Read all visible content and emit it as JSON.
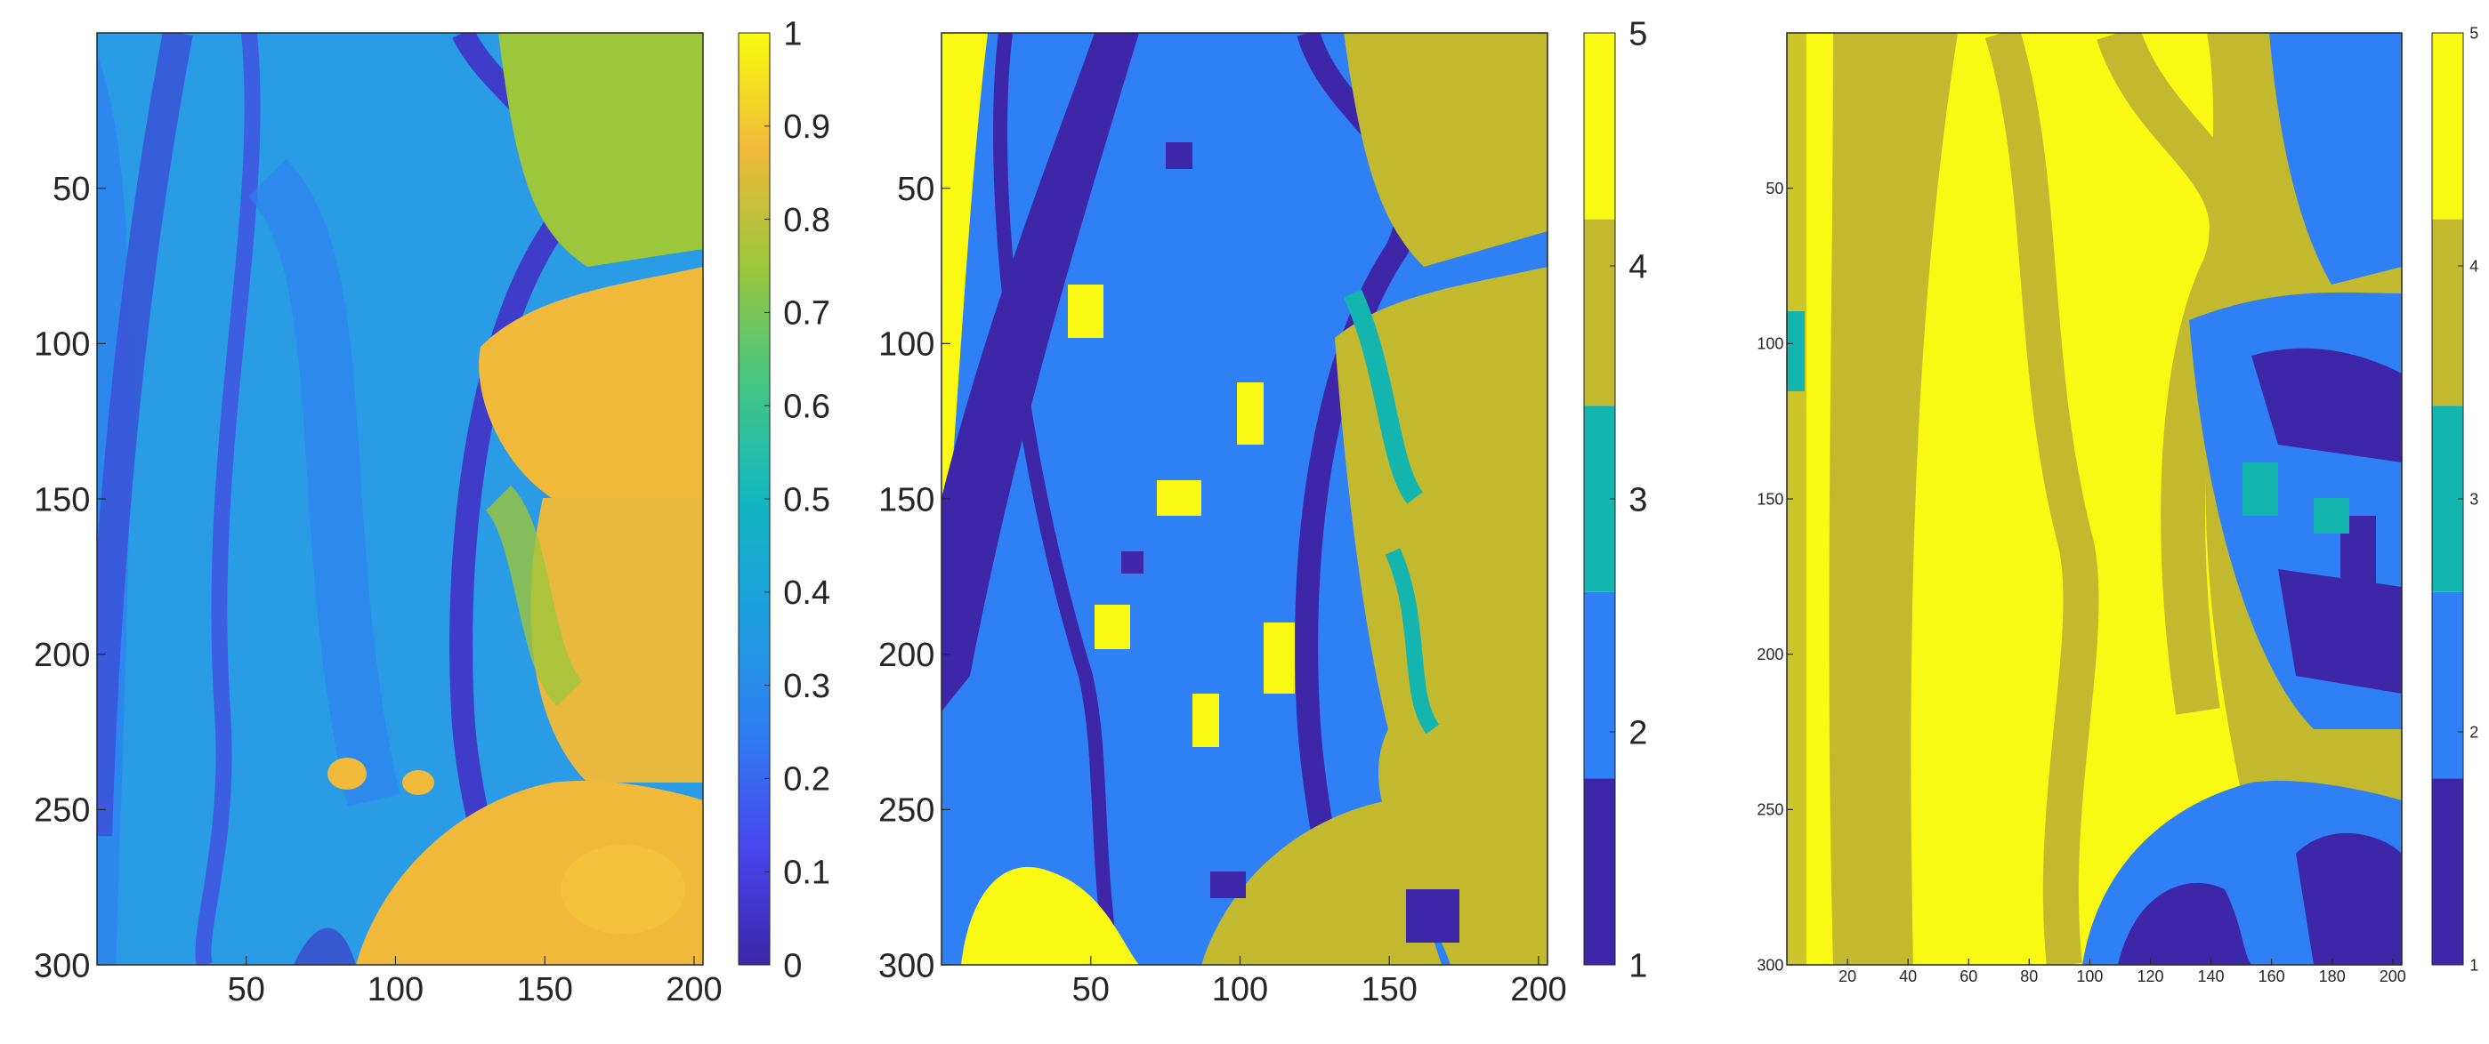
{
  "chart_data": [
    {
      "type": "heatmap",
      "colormap": "parula",
      "colorbar": {
        "ticks": [
          "0",
          "0.1",
          "0.2",
          "0.3",
          "0.4",
          "0.5",
          "0.6",
          "0.7",
          "0.8",
          "0.9",
          "1"
        ],
        "range": [
          0,
          1
        ]
      },
      "x_ticks": [
        "50",
        "100",
        "150",
        "200"
      ],
      "y_ticks": [
        "50",
        "100",
        "150",
        "200",
        "250",
        "300"
      ],
      "xlim": [
        0,
        203
      ],
      "ylim": [
        0,
        300
      ],
      "title": "",
      "xlabel": "",
      "ylabel": ""
    },
    {
      "type": "heatmap",
      "colormap": "parula-5-class",
      "colorbar": {
        "ticks": [
          "1",
          "2",
          "3",
          "4",
          "5"
        ],
        "range": [
          1,
          5
        ]
      },
      "x_ticks": [
        "50",
        "100",
        "150",
        "200"
      ],
      "y_ticks": [
        "50",
        "100",
        "150",
        "200",
        "250",
        "300"
      ],
      "xlim": [
        0,
        203
      ],
      "ylim": [
        0,
        300
      ],
      "title": "",
      "xlabel": "",
      "ylabel": ""
    },
    {
      "type": "heatmap",
      "colormap": "parula-5-class",
      "colorbar": {
        "ticks": [
          "1",
          "2",
          "3",
          "4",
          "5"
        ],
        "range": [
          1,
          5
        ]
      },
      "x_ticks": [
        "20",
        "40",
        "60",
        "80",
        "100",
        "120",
        "140",
        "160",
        "180",
        "200"
      ],
      "y_ticks": [
        "50",
        "100",
        "150",
        "200",
        "250",
        "300"
      ],
      "xlim": [
        0,
        203
      ],
      "ylim": [
        0,
        300
      ],
      "title": "",
      "xlabel": "",
      "ylabel": ""
    }
  ],
  "colors": {
    "class_1": "#3e26a8",
    "class_2": "#2f80f5",
    "class_3": "#14b5ae",
    "class_4": "#c2b92f",
    "class_5": "#f9f914",
    "axis": "#262626"
  }
}
